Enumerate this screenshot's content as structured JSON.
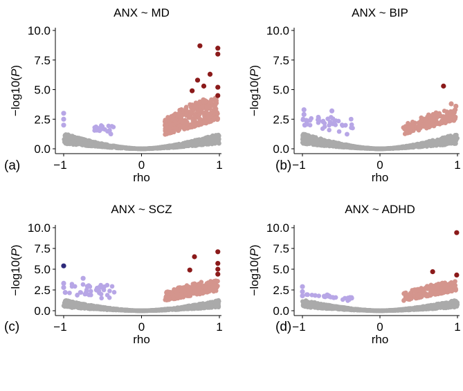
{
  "chart_data": [
    {
      "type": "scatter",
      "panel": "(a)",
      "title": "ANX ~ MD",
      "xlabel": "rho",
      "ylabel": "−log10(P)",
      "xlim": [
        -1.05,
        1.05
      ],
      "ylim": [
        -0.2,
        10.5
      ],
      "xticks": [
        -1,
        0,
        1
      ],
      "yticks": [
        0.0,
        2.5,
        5.0,
        7.5,
        10.0
      ],
      "grid": false,
      "colors": {
        "neutral": "#aaaaaa",
        "neg_sig": "#b7a6e6",
        "pos_sig": "#d4958d",
        "pos_strong": "#8b1a1a"
      },
      "highlight_points": [
        {
          "x": 0.75,
          "y": 8.7,
          "color": "#8b1a1a"
        },
        {
          "x": 0.98,
          "y": 8.5,
          "color": "#8b1a1a"
        },
        {
          "x": 0.98,
          "y": 8.0,
          "color": "#8b1a1a"
        },
        {
          "x": 0.88,
          "y": 6.3,
          "color": "#8b1a1a"
        },
        {
          "x": 0.72,
          "y": 5.8,
          "color": "#8b1a1a"
        },
        {
          "x": 0.8,
          "y": 5.3,
          "color": "#8b1a1a"
        },
        {
          "x": 0.98,
          "y": 5.2,
          "color": "#8b1a1a"
        },
        {
          "x": 0.98,
          "y": 4.5,
          "color": "#8b1a1a"
        },
        {
          "x": 0.65,
          "y": 4.9,
          "color": "#8b1a1a"
        },
        {
          "x": -1.0,
          "y": 3.0,
          "color": "#b7a6e6"
        },
        {
          "x": -1.0,
          "y": 2.5,
          "color": "#b7a6e6"
        },
        {
          "x": -1.0,
          "y": 2.0,
          "color": "#b7a6e6"
        }
      ]
    },
    {
      "type": "scatter",
      "panel": "(b)",
      "title": "ANX ~ BIP",
      "xlabel": "rho",
      "ylabel": "−log10(P)",
      "xlim": [
        -1.05,
        1.05
      ],
      "ylim": [
        -0.2,
        10.5
      ],
      "xticks": [
        -1,
        0,
        1
      ],
      "yticks": [
        0.0,
        2.5,
        5.0,
        7.5,
        10.0
      ],
      "grid": false,
      "colors": {
        "neutral": "#aaaaaa",
        "neg_sig": "#b7a6e6",
        "pos_sig": "#d4958d",
        "pos_strong": "#8b1a1a"
      },
      "highlight_points": [
        {
          "x": 0.82,
          "y": 5.3,
          "color": "#8b1a1a"
        },
        {
          "x": -0.98,
          "y": 3.3,
          "color": "#b7a6e6"
        },
        {
          "x": -0.98,
          "y": 2.9,
          "color": "#b7a6e6"
        },
        {
          "x": -0.95,
          "y": 2.4,
          "color": "#b7a6e6"
        },
        {
          "x": -0.97,
          "y": 2.0,
          "color": "#b7a6e6"
        },
        {
          "x": -0.62,
          "y": 3.2,
          "color": "#b7a6e6"
        },
        {
          "x": 0.98,
          "y": 3.6,
          "color": "#d4958d"
        },
        {
          "x": 0.92,
          "y": 3.8,
          "color": "#d4958d"
        }
      ]
    },
    {
      "type": "scatter",
      "panel": "(c)",
      "title": "ANX ~ SCZ",
      "xlabel": "rho",
      "ylabel": "−log10(P)",
      "xlim": [
        -1.05,
        1.05
      ],
      "ylim": [
        -0.2,
        10.5
      ],
      "xticks": [
        -1,
        0,
        1
      ],
      "yticks": [
        0.0,
        2.5,
        5.0,
        7.5,
        10.0
      ],
      "grid": false,
      "colors": {
        "neutral": "#aaaaaa",
        "neg_sig": "#b7a6e6",
        "pos_sig": "#d4958d",
        "pos_strong": "#8b1a1a",
        "neg_strong": "#2e2a7a"
      },
      "highlight_points": [
        {
          "x": -1.0,
          "y": 5.4,
          "color": "#2e2a7a"
        },
        {
          "x": 0.98,
          "y": 7.1,
          "color": "#8b1a1a"
        },
        {
          "x": 0.68,
          "y": 6.5,
          "color": "#8b1a1a"
        },
        {
          "x": 0.98,
          "y": 5.7,
          "color": "#8b1a1a"
        },
        {
          "x": 0.98,
          "y": 5.0,
          "color": "#8b1a1a"
        },
        {
          "x": 0.62,
          "y": 4.9,
          "color": "#8b1a1a"
        },
        {
          "x": 0.98,
          "y": 4.4,
          "color": "#8b1a1a"
        },
        {
          "x": -1.0,
          "y": 3.3,
          "color": "#b7a6e6"
        },
        {
          "x": -0.75,
          "y": 3.9,
          "color": "#b7a6e6"
        },
        {
          "x": -1.0,
          "y": 2.8,
          "color": "#b7a6e6"
        },
        {
          "x": -0.98,
          "y": 2.2,
          "color": "#b7a6e6"
        }
      ]
    },
    {
      "type": "scatter",
      "panel": "(d)",
      "title": "ANX ~ ADHD",
      "xlabel": "rho",
      "ylabel": "−log10(P)",
      "xlim": [
        -1.05,
        1.05
      ],
      "ylim": [
        -0.2,
        10.5
      ],
      "xticks": [
        -1,
        0,
        1
      ],
      "yticks": [
        0.0,
        2.5,
        5.0,
        7.5,
        10.0
      ],
      "grid": false,
      "colors": {
        "neutral": "#aaaaaa",
        "neg_sig": "#b7a6e6",
        "pos_sig": "#d4958d",
        "pos_strong": "#8b1a1a"
      },
      "highlight_points": [
        {
          "x": 0.99,
          "y": 9.4,
          "color": "#8b1a1a"
        },
        {
          "x": 0.68,
          "y": 4.7,
          "color": "#8b1a1a"
        },
        {
          "x": 0.99,
          "y": 4.3,
          "color": "#8b1a1a"
        },
        {
          "x": -1.0,
          "y": 2.9,
          "color": "#b7a6e6"
        },
        {
          "x": -1.0,
          "y": 2.3,
          "color": "#b7a6e6"
        },
        {
          "x": -1.0,
          "y": 1.8,
          "color": "#b7a6e6"
        },
        {
          "x": -0.68,
          "y": 1.9,
          "color": "#b7a6e6"
        }
      ]
    }
  ]
}
